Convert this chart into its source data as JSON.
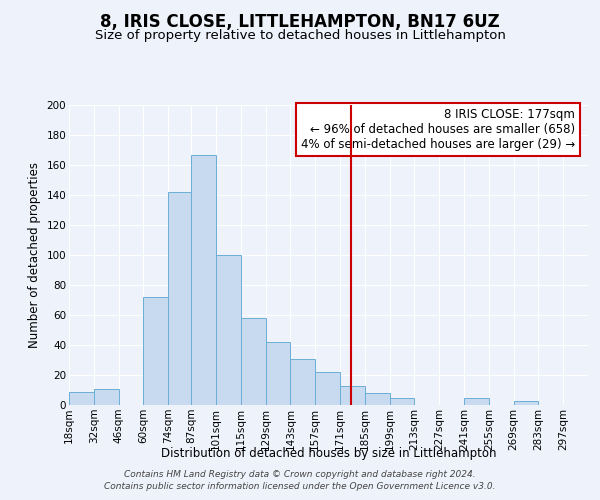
{
  "title": "8, IRIS CLOSE, LITTLEHAMPTON, BN17 6UZ",
  "subtitle": "Size of property relative to detached houses in Littlehampton",
  "xlabel": "Distribution of detached houses by size in Littlehampton",
  "ylabel": "Number of detached properties",
  "bin_labels": [
    "18sqm",
    "32sqm",
    "46sqm",
    "60sqm",
    "74sqm",
    "87sqm",
    "101sqm",
    "115sqm",
    "129sqm",
    "143sqm",
    "157sqm",
    "171sqm",
    "185sqm",
    "199sqm",
    "213sqm",
    "227sqm",
    "241sqm",
    "255sqm",
    "269sqm",
    "283sqm",
    "297sqm"
  ],
  "bin_edges": [
    18,
    32,
    46,
    60,
    74,
    87,
    101,
    115,
    129,
    143,
    157,
    171,
    185,
    199,
    213,
    227,
    241,
    255,
    269,
    283,
    297
  ],
  "bar_heights": [
    9,
    11,
    0,
    72,
    142,
    167,
    100,
    58,
    42,
    31,
    22,
    13,
    8,
    5,
    0,
    0,
    5,
    0,
    3,
    0,
    0
  ],
  "bar_color": "#c8daf0",
  "bar_edge_color": "#6baed6",
  "vline_x": 177,
  "vline_color": "#cc0000",
  "ylim": [
    0,
    200
  ],
  "yticks": [
    0,
    20,
    40,
    60,
    80,
    100,
    120,
    140,
    160,
    180,
    200
  ],
  "bg_color": "#eef2fa",
  "annotation_title": "8 IRIS CLOSE: 177sqm",
  "annotation_line1": "← 96% of detached houses are smaller (658)",
  "annotation_line2": "4% of semi-detached houses are larger (29) →",
  "annotation_box_facecolor": "#ffffff",
  "annotation_box_edgecolor": "#cc0000",
  "footer_line1": "Contains HM Land Registry data © Crown copyright and database right 2024.",
  "footer_line2": "Contains public sector information licensed under the Open Government Licence v3.0.",
  "title_fontsize": 12,
  "subtitle_fontsize": 9.5,
  "axis_label_fontsize": 8.5,
  "tick_fontsize": 7.5,
  "annotation_fontsize": 8.5,
  "footer_fontsize": 6.5
}
